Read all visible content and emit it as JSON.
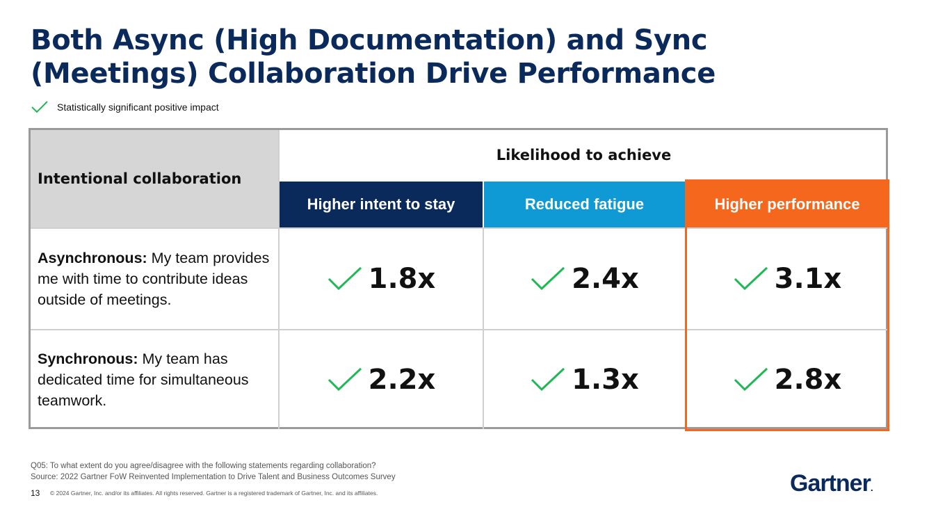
{
  "title": "Both Async (High Documentation) and Sync (Meetings) Collaboration Drive Performance",
  "legend": {
    "icon": "checkmark-icon",
    "text": "Statistically significant positive impact",
    "color": "#1db954"
  },
  "table": {
    "row_header": "Intentional collaboration",
    "group_header": "Likelihood to achieve",
    "columns": [
      {
        "label": "Higher intent to stay",
        "color": "#0b2a5c"
      },
      {
        "label": "Reduced fatigue",
        "color": "#0f9ad6"
      },
      {
        "label": "Higher performance",
        "color": "#f4671d"
      }
    ],
    "rows": [
      {
        "lead": "Asynchronous:",
        "text": " My team provides me with time to contribute ideas outside of meetings.",
        "values": [
          "1.8x",
          "2.4x",
          "3.1x"
        ]
      },
      {
        "lead": "Synchronous:",
        "text": " My team has dedicated time for simultaneous teamwork.",
        "values": [
          "2.2x",
          "1.3x",
          "2.8x"
        ]
      }
    ],
    "highlight_column": "Higher performance",
    "highlight_color": "#f4671d"
  },
  "footnote": {
    "question": "Q05: To what extent do you agree/disagree with the following statements regarding collaboration?",
    "source": "Source: 2022 Gartner FoW Reinvented Implementation to Drive Talent and Business Outcomes Survey"
  },
  "page_number": "13",
  "copyright": "© 2024 Gartner, Inc. and/or its affiliates. All rights reserved. Gartner is a registered trademark of Gartner, Inc. and its affiliates.",
  "logo": {
    "text": "Gartner",
    "mark": "."
  }
}
